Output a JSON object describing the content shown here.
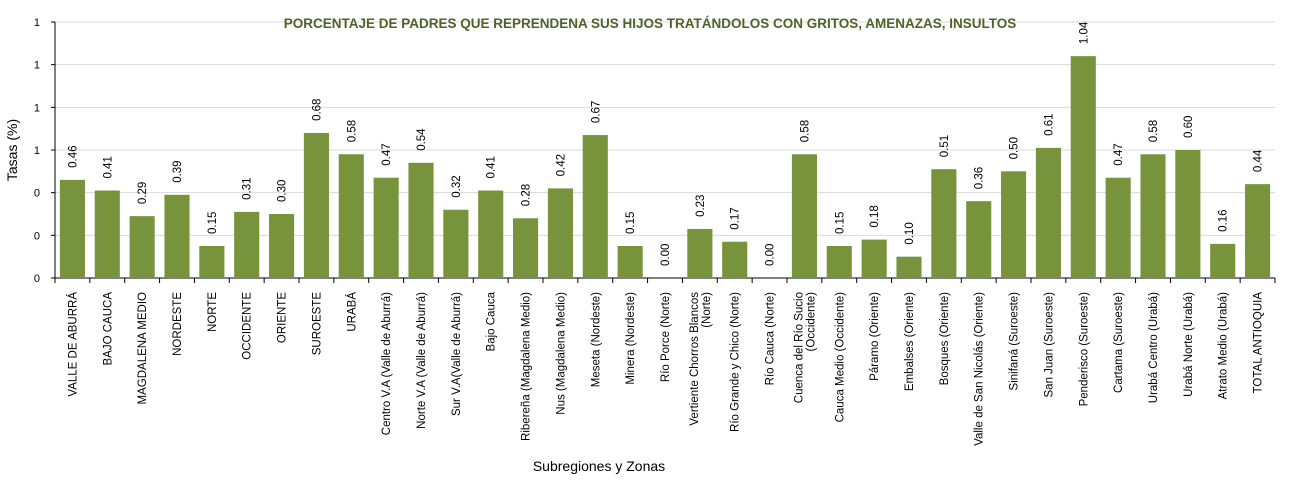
{
  "chart_data": {
    "type": "bar",
    "title": "PORCENTAJE DE PADRES QUE REPRENDENA SUS HIJOS TRATÁNDOLOS CON GRITOS, AMENAZAS, INSULTOS",
    "xlabel": "Subregiones y Zonas",
    "ylabel": "Tasas (%)",
    "ylim": [
      0,
      1.2
    ],
    "yticks": [
      0,
      0.2,
      0.4,
      0.6,
      0.8,
      1.0,
      1.2
    ],
    "ytick_labels": [
      "0",
      "0",
      "0",
      "1",
      "1",
      "1",
      "1"
    ],
    "grid": true,
    "bar_color": "#77933c",
    "title_color": "#4f6228",
    "categories": [
      "VALLE DE ABURRÁ",
      "BAJO CAUCA",
      "MAGDALENA MEDIO",
      "NORDESTE",
      "NORTE",
      "OCCIDENTE",
      "ORIENTE",
      "SUROESTE",
      "URABÁ",
      "Centro V.A (Valle de Aburrá)",
      "Norte V.A (Valle de Aburrá)",
      "Sur V.A(Valle de Aburrá)",
      "Bajo Cauca",
      "Ribereña  (Magdalena Medio)",
      "Nus  (Magdalena Medio)",
      "Meseta  (Nordeste)",
      "Minera  (Nordeste)",
      "Río Porce   (Norte)",
      "Vertiente Chorros Blancos\n(Norte)",
      "Río Grande y Chico  (Norte)",
      "Río Cauca  (Norte)",
      "Cuenca del Río Sucio\n(Occidente)",
      "Cauca Medio  (Occidente)",
      "Páramo  (Oriente)",
      "Embalses  (Oriente)",
      "Bosques  (Oriente)",
      "Valle de San Nicolás (Oriente)",
      "Sinifaná  (Suroeste)",
      "San Juan  (Suroeste)",
      "Penderisco  (Suroeste)",
      "Cartama  (Suroeste)",
      "Urabá Centro  (Urabá)",
      "Urabá Norte  (Urabá)",
      "Atrato Medio  (Urabá)",
      "TOTAL ANTIOQUIA"
    ],
    "values": [
      0.46,
      0.41,
      0.29,
      0.39,
      0.15,
      0.31,
      0.3,
      0.68,
      0.58,
      0.47,
      0.54,
      0.32,
      0.41,
      0.28,
      0.42,
      0.67,
      0.15,
      0.0,
      0.23,
      0.17,
      0.0,
      0.58,
      0.15,
      0.18,
      0.1,
      0.51,
      0.36,
      0.5,
      0.61,
      1.04,
      0.47,
      0.58,
      0.6,
      0.16,
      0.44
    ],
    "data_labels": [
      "0.46",
      "0.41",
      "0.29",
      "0.39",
      "0.15",
      "0.31",
      "0.30",
      "0.68",
      "0.58",
      "0.47",
      "0.54",
      "0.32",
      "0.41",
      "0.28",
      "0.42",
      "0.67",
      "0.15",
      "0.00",
      "0.23",
      "0.17",
      "0.00",
      "0.58",
      "0.15",
      "0.18",
      "0.10",
      "0.51",
      "0.36",
      "0.50",
      "0.61",
      "1.04",
      "0.47",
      "0.58",
      "0.60",
      "0.16",
      "0.44"
    ]
  }
}
